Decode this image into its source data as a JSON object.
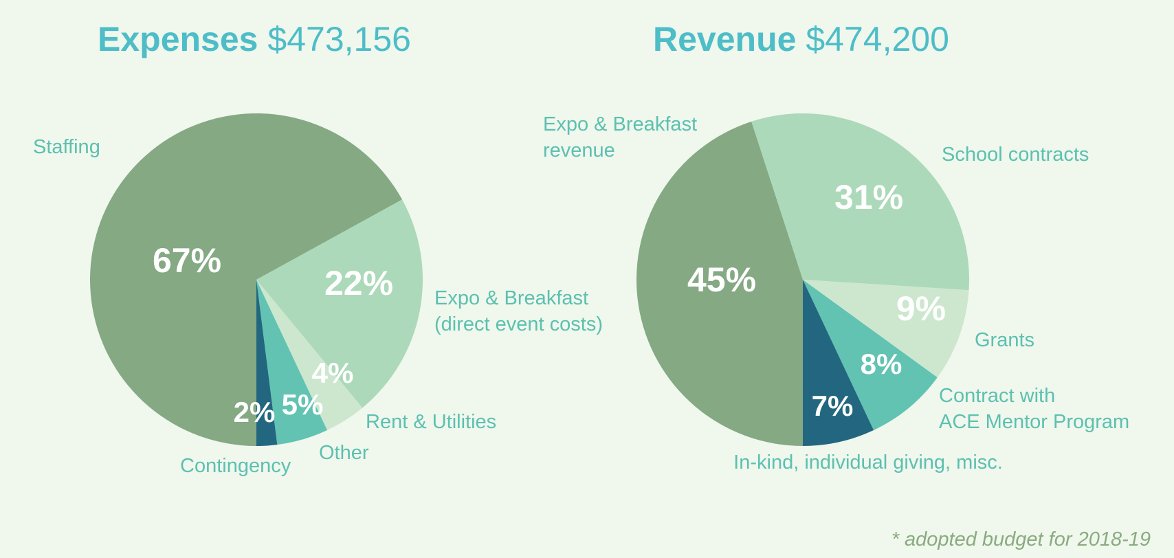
{
  "charts": {
    "expenses": {
      "title_word": "Expenses",
      "title_amount": "$473,156"
    },
    "revenue": {
      "title_word": "Revenue",
      "title_amount": "$474,200"
    }
  },
  "footnote": "* adopted budget for 2018-19",
  "colors": {
    "background": "#f0f7ed",
    "title": "#4dbdc8",
    "label": "#5cc0b0",
    "sage": "#84a983",
    "mint": "#acd9b9",
    "pale": "#cde7cf",
    "teal": "#62c3b2",
    "navy": "#22677f"
  },
  "chart_data": [
    {
      "type": "pie",
      "title": "Expenses $473,156",
      "slices": [
        {
          "label": "Staffing",
          "value": 67,
          "display": "67%",
          "color": "#84a983"
        },
        {
          "label": "Expo & Breakfast (direct event costs)",
          "label_lines": [
            "Expo & Breakfast",
            "(direct event costs)"
          ],
          "value": 22,
          "display": "22%",
          "color": "#acd9b9"
        },
        {
          "label": "Rent & Utilities",
          "value": 4,
          "display": "4%",
          "color": "#cde7cf"
        },
        {
          "label": "Other",
          "value": 5,
          "display": "5%",
          "color": "#62c3b2"
        },
        {
          "label": "Contingency",
          "value": 2,
          "display": "2%",
          "color": "#22677f"
        }
      ]
    },
    {
      "type": "pie",
      "title": "Revenue $474,200",
      "slices": [
        {
          "label": "Expo & Breakfast revenue",
          "label_lines": [
            "Expo & Breakfast",
            "revenue"
          ],
          "value": 45,
          "display": "45%",
          "color": "#84a983"
        },
        {
          "label": "School contracts",
          "value": 31,
          "display": "31%",
          "color": "#acd9b9"
        },
        {
          "label": "Grants",
          "value": 9,
          "display": "9%",
          "color": "#cde7cf"
        },
        {
          "label": "Contract with ACE Mentor Program",
          "label_lines": [
            "Contract with",
            "ACE Mentor Program"
          ],
          "value": 8,
          "display": "8%",
          "color": "#62c3b2"
        },
        {
          "label": "In-kind, individual giving, misc.",
          "value": 7,
          "display": "7%",
          "color": "#22677f"
        }
      ]
    }
  ]
}
